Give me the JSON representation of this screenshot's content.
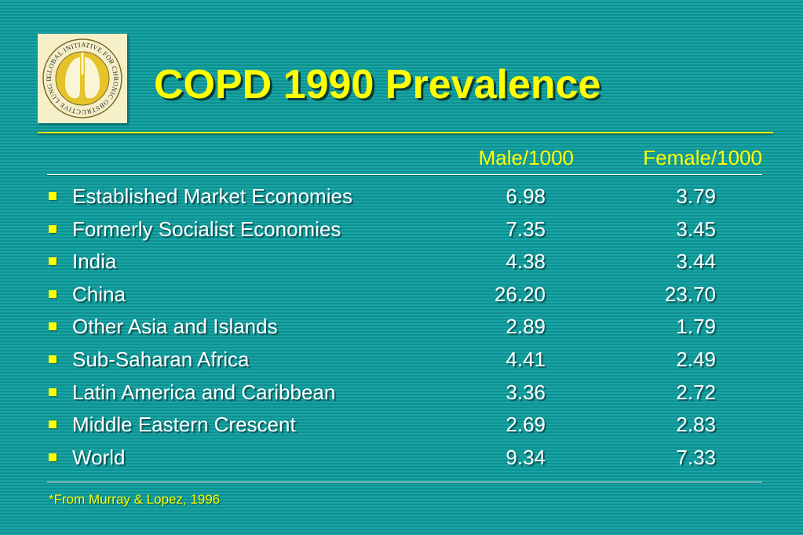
{
  "logo": {
    "text": "GLOBAL INITIATIVE FOR CHRONIC OBSTRUCTIVE LUNG DISEASE"
  },
  "title": "COPD 1990 Prevalence",
  "columns": {
    "male": "Male/1000",
    "female": "Female/1000"
  },
  "rows": [
    {
      "region": "Established Market Economies",
      "male": "6.98",
      "female": "3.79"
    },
    {
      "region": "Formerly Socialist Economies",
      "male": "7.35",
      "female": "3.45"
    },
    {
      "region": "India",
      "male": "4.38",
      "female": "3.44"
    },
    {
      "region": "China",
      "male": "26.20",
      "female": "23.70"
    },
    {
      "region": "Other Asia and Islands",
      "male": "2.89",
      "female": "1.79"
    },
    {
      "region": "Sub-Saharan Africa",
      "male": "4.41",
      "female": "2.49"
    },
    {
      "region": "Latin America and Caribbean",
      "male": "3.36",
      "female": "2.72"
    },
    {
      "region": "Middle Eastern Crescent",
      "male": "2.69",
      "female": "2.83"
    },
    {
      "region": "World",
      "male": "9.34",
      "female": "7.33"
    }
  ],
  "footnote": "*From Murray & Lopez, 1996",
  "colors": {
    "background": "#149c9c",
    "accent": "#ffff00",
    "text": "#ffffff"
  }
}
